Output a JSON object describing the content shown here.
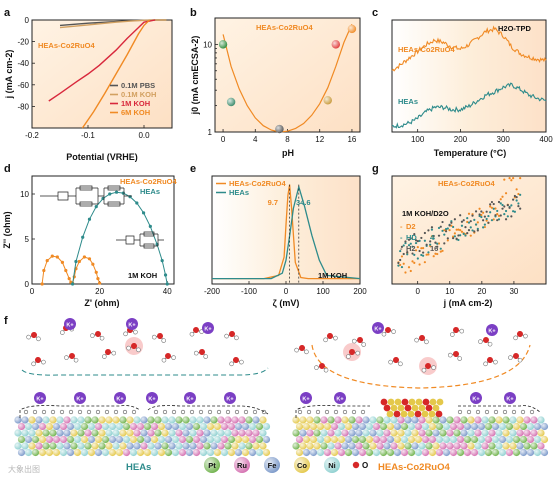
{
  "panel_labels": [
    "a",
    "b",
    "c",
    "d",
    "e",
    "g",
    "f"
  ],
  "chart_data": [
    {
      "panel": "a",
      "type": "line",
      "title": "",
      "xlabel": "Potential (VRHE)",
      "ylabel": "j (mA cm-2)",
      "annotation": "HEAs-Co2RuO4",
      "xlim": [
        -0.2,
        0.05
      ],
      "ylim": [
        -100,
        0
      ],
      "xticks": [
        "-0.2",
        "-0.1",
        "0.0"
      ],
      "yticks": [
        "-80",
        "-60",
        "-40",
        "-20",
        "0"
      ],
      "legend_position": "bottom-right",
      "series": [
        {
          "name": "0.1M PBS",
          "color": "#555555",
          "x": [
            -0.15,
            -0.1,
            -0.05,
            -0.02,
            0.0,
            0.02,
            0.04
          ],
          "y": [
            -5,
            -3,
            -1.5,
            -0.6,
            -0.2,
            0,
            0
          ]
        },
        {
          "name": "0.1M KOH",
          "color": "#d2a060",
          "x": [
            -0.15,
            -0.1,
            -0.05,
            -0.02,
            0.0,
            0.02,
            0.04
          ],
          "y": [
            -7,
            -4.5,
            -2,
            -0.8,
            -0.3,
            0,
            0
          ]
        },
        {
          "name": "1M KOH",
          "color": "#d8283c",
          "x": [
            -0.17,
            -0.15,
            -0.12,
            -0.1,
            -0.08,
            -0.05,
            -0.03,
            -0.01,
            0.0,
            0.02
          ],
          "y": [
            -75,
            -68,
            -57,
            -50,
            -42,
            -28,
            -17,
            -7,
            -2,
            0
          ]
        },
        {
          "name": "6M KOH",
          "color": "#f08a24",
          "x": [
            -0.11,
            -0.09,
            -0.07,
            -0.05,
            -0.03,
            -0.01,
            0.0,
            0.01
          ],
          "y": [
            -100,
            -85,
            -68,
            -50,
            -32,
            -13,
            -5,
            0
          ]
        }
      ]
    },
    {
      "panel": "b",
      "type": "scatter",
      "title": "HEAs-Co2RuO4",
      "xlabel": "pH",
      "ylabel": "j0 (mA cmECSA-2)",
      "xlim": [
        -1,
        17
      ],
      "ylim": [
        1,
        20
      ],
      "y_scale": "log",
      "xticks": [
        "0",
        "4",
        "8",
        "12",
        "16"
      ],
      "yticks": [
        "1",
        "10"
      ],
      "points": [
        {
          "x": 0,
          "y": 10,
          "color": "#2e8b3c"
        },
        {
          "x": 1,
          "y": 2.2,
          "color": "#3a8a6a"
        },
        {
          "x": 7,
          "y": 1.08,
          "color": "#555555"
        },
        {
          "x": 13,
          "y": 2.3,
          "color": "#c89a3a"
        },
        {
          "x": 14,
          "y": 10,
          "color": "#e03a3a"
        },
        {
          "x": 16,
          "y": 15,
          "color": "#f08a24"
        }
      ],
      "fit_x": [
        0,
        1,
        2,
        3,
        4,
        5,
        6,
        7,
        8,
        9,
        10,
        11,
        12,
        13,
        14,
        15,
        16
      ],
      "fit_y": [
        13,
        5.6,
        3.1,
        2.0,
        1.45,
        1.18,
        1.05,
        1.0,
        1.02,
        1.1,
        1.25,
        1.55,
        2.1,
        3.2,
        5.6,
        10.5,
        17
      ]
    },
    {
      "panel": "c",
      "type": "line",
      "title": "H2O-TPD",
      "xlabel": "Temperature (°C)",
      "ylabel": "",
      "xlim": [
        40,
        400
      ],
      "ylim": [
        0,
        1
      ],
      "xticks": [
        "100",
        "200",
        "300",
        "400"
      ],
      "series": [
        {
          "name": "HEAs-Co2RuO4",
          "color": "#f08a24",
          "x": [
            40,
            60,
            80,
            100,
            120,
            140,
            160,
            180,
            200,
            220,
            240,
            260,
            280,
            300,
            320,
            340,
            360,
            380,
            400
          ],
          "y": [
            0.55,
            0.6,
            0.66,
            0.72,
            0.78,
            0.82,
            0.8,
            0.76,
            0.74,
            0.78,
            0.84,
            0.9,
            0.92,
            0.86,
            0.76,
            0.7,
            0.67,
            0.65,
            0.64
          ]
        },
        {
          "name": "HEAs",
          "color": "#2e8b8b",
          "x": [
            40,
            60,
            80,
            100,
            120,
            140,
            160,
            180,
            200,
            220,
            240,
            260,
            280,
            300,
            320,
            340,
            360,
            380,
            400
          ],
          "y": [
            0.05,
            0.06,
            0.08,
            0.12,
            0.18,
            0.22,
            0.22,
            0.2,
            0.2,
            0.23,
            0.28,
            0.33,
            0.36,
            0.4,
            0.42,
            0.38,
            0.33,
            0.3,
            0.28
          ]
        }
      ]
    },
    {
      "panel": "d",
      "type": "scatter",
      "title": "",
      "xlabel": "Z' (ohm)",
      "ylabel": "Z'' (ohm)",
      "annotation": "1M KOH",
      "xlim": [
        0,
        42
      ],
      "ylim": [
        0,
        12
      ],
      "xticks": [
        "0",
        "20",
        "40"
      ],
      "yticks": [
        "0",
        "5",
        "10"
      ],
      "series": [
        {
          "name": "HEAs-Co2RuO4",
          "color": "#f08a24",
          "x": [
            3,
            3.5,
            4.5,
            6,
            7.5,
            9,
            10,
            11,
            11.5,
            12,
            12.5,
            13,
            14,
            15.5,
            17,
            18,
            19,
            19.5,
            20
          ],
          "y": [
            0,
            1.5,
            2.6,
            3.1,
            3.0,
            2.4,
            1.5,
            0.6,
            0.2,
            0.1,
            0.8,
            1.7,
            2.5,
            3.0,
            2.8,
            2.2,
            1.3,
            0.6,
            0.1
          ]
        },
        {
          "name": "HEAs",
          "color": "#2e8b8b",
          "x": [
            12,
            13,
            15,
            17,
            19,
            21,
            23,
            25,
            27,
            29,
            31,
            33,
            35,
            37,
            38.5,
            39.5,
            40
          ],
          "y": [
            0,
            2.5,
            5.2,
            7.2,
            8.6,
            9.5,
            10.0,
            10.2,
            10.1,
            9.7,
            9.0,
            7.9,
            6.4,
            4.4,
            2.6,
            1.0,
            0
          ]
        }
      ]
    },
    {
      "panel": "e",
      "type": "line",
      "title": "",
      "xlabel": "ζ (mV)",
      "ylabel": "",
      "annotation": "1M KOH",
      "xlim": [
        -200,
        200
      ],
      "ylim": [
        0,
        1
      ],
      "xticks": [
        "-200",
        "-100",
        "0",
        "100",
        "200"
      ],
      "peak_labels": [
        "9.7",
        "34.6"
      ],
      "series": [
        {
          "name": "HEAs-Co2RuO4",
          "color": "#f08a24",
          "x": [
            -200,
            -60,
            -20,
            -5,
            0,
            5,
            9.7,
            15,
            25,
            40,
            60,
            200
          ],
          "y": [
            0.05,
            0.05,
            0.08,
            0.25,
            0.55,
            0.82,
            0.92,
            0.7,
            0.2,
            0.06,
            0.05,
            0.05
          ]
        },
        {
          "name": "HEAs",
          "color": "#2e8b8b",
          "x": [
            -200,
            -40,
            -10,
            0,
            10,
            20,
            34.6,
            50,
            70,
            90,
            110,
            200
          ],
          "y": [
            0.05,
            0.05,
            0.1,
            0.22,
            0.45,
            0.7,
            0.9,
            0.72,
            0.45,
            0.22,
            0.08,
            0.05
          ]
        }
      ]
    },
    {
      "panel": "g",
      "type": "scatter",
      "title": "HEAs-Co2RuO4",
      "xlabel": "j (mA cm-2)",
      "ylabel": "",
      "annotation": "1M KOH/D2O",
      "xlim": [
        -8,
        40
      ],
      "ylim": [
        0,
        1
      ],
      "xticks": [
        "0",
        "10",
        "20",
        "30"
      ],
      "legend_entries": [
        {
          "name": "D2",
          "value": "",
          "color": "#f08a24"
        },
        {
          "name": "HD",
          "value": "4",
          "color": "#2e8b8b"
        },
        {
          "name": "H2",
          "value": "16",
          "color": "#555555"
        }
      ],
      "series": [
        {
          "name": "D2",
          "color": "#f08a24"
        },
        {
          "name": "HD",
          "color": "#2e8b8b"
        },
        {
          "name": "H2",
          "color": "#555555"
        }
      ]
    }
  ],
  "panel_f": {
    "left_label": "HEAs",
    "right_label": "HEAs-Co2RuO4",
    "k_ion": "K+",
    "elements": [
      {
        "label": "Pt",
        "color": "#6fb24b"
      },
      {
        "label": "Ru",
        "color": "#d46fb0"
      },
      {
        "label": "Fe",
        "color": "#7a98c9"
      },
      {
        "label": "Co",
        "color": "#e4c84a"
      },
      {
        "label": "Ni",
        "color": "#8ed0d0"
      }
    ],
    "o_label": "O",
    "watermark": "大象出图"
  }
}
